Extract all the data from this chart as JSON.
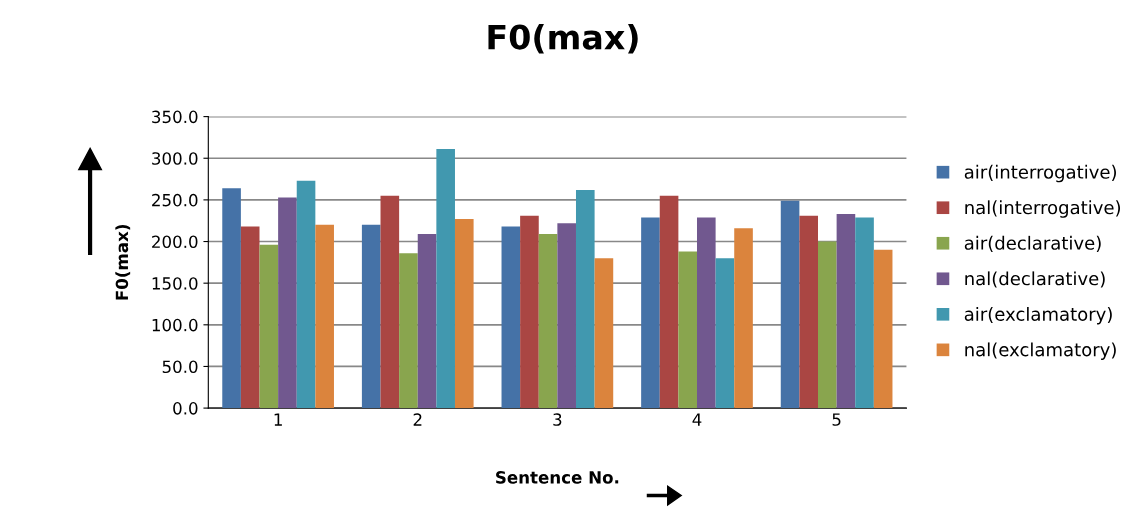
{
  "chart_data": {
    "type": "bar",
    "title": "F0(max)",
    "xlabel": "Sentence No.",
    "ylabel": "F0(max)",
    "categories": [
      "1",
      "2",
      "3",
      "4",
      "5"
    ],
    "series": [
      {
        "name": "air(interrogative)",
        "color": "#4572a7",
        "values": [
          264,
          220,
          218,
          229,
          249
        ]
      },
      {
        "name": "nal(interrogative)",
        "color": "#aa4643",
        "values": [
          218,
          255,
          231,
          255,
          231
        ]
      },
      {
        "name": "air(declarative)",
        "color": "#89a54e",
        "values": [
          196,
          186,
          209,
          188,
          200
        ]
      },
      {
        "name": "nal(declarative)",
        "color": "#71588f",
        "values": [
          253,
          209,
          222,
          229,
          233
        ]
      },
      {
        "name": "air(exclamatory)",
        "color": "#4198af",
        "values": [
          273,
          311,
          262,
          180,
          229
        ]
      },
      {
        "name": "nal(exclamatory)",
        "color": "#db843d",
        "values": [
          220,
          227,
          180,
          216,
          190
        ]
      }
    ],
    "ylim": [
      0,
      350
    ],
    "yticks": [
      {
        "value": 0,
        "label": "0.0"
      },
      {
        "value": 50,
        "label": "50.0"
      },
      {
        "value": 100,
        "label": "100.0"
      },
      {
        "value": 150,
        "label": "150.0"
      },
      {
        "value": 200,
        "label": "200.0"
      },
      {
        "value": 250,
        "label": "250.0"
      },
      {
        "value": 300,
        "label": "300.0"
      },
      {
        "value": 350,
        "label": "350.0"
      }
    ],
    "grid": "y",
    "legend": "right"
  }
}
